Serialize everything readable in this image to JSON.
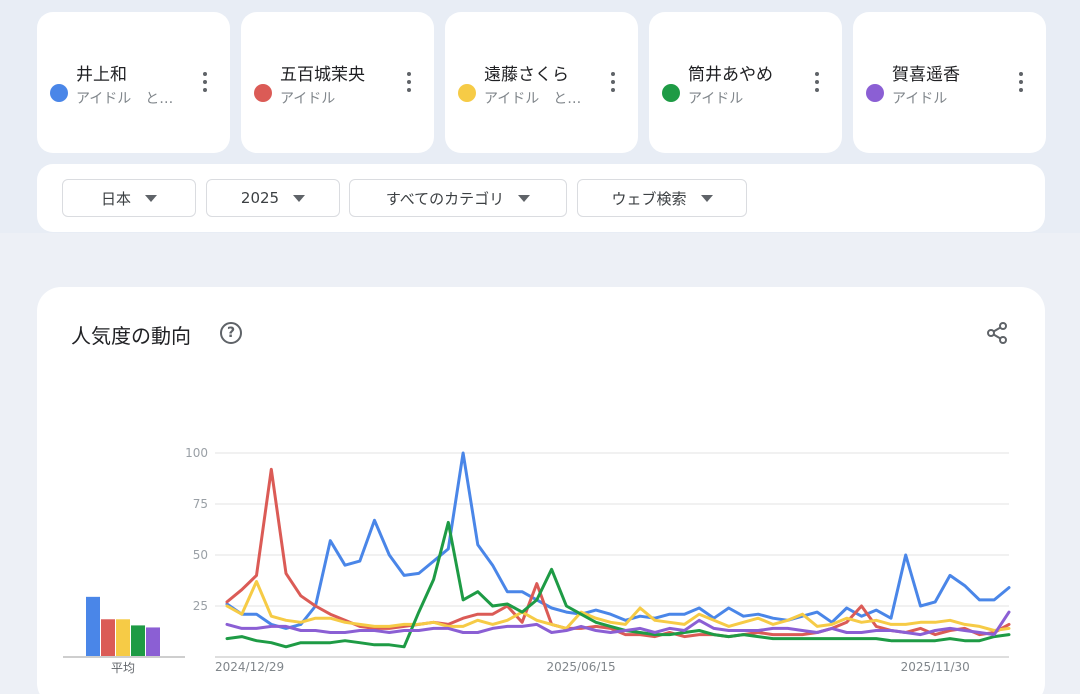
{
  "terms": [
    {
      "name": "井上和",
      "subtitle": "アイドル　と…",
      "color": "#4a86e8"
    },
    {
      "name": "五百城茉央",
      "subtitle": "アイドル",
      "color": "#db5b56"
    },
    {
      "name": "遠藤さくら",
      "subtitle": "アイドル　と…",
      "color": "#f6cb46"
    },
    {
      "name": "筒井あやめ",
      "subtitle": "アイドル",
      "color": "#1e9b45"
    },
    {
      "name": "賀喜遥香",
      "subtitle": "アイドル",
      "color": "#8b5fd4"
    }
  ],
  "filters": {
    "region": "日本",
    "period": "2025",
    "category": "すべてのカテゴリ",
    "search_type": "ウェブ検索"
  },
  "chart": {
    "title": "人気度の動向",
    "average_label": "平均",
    "share_icon": "share-icon",
    "help_icon": "help-icon"
  },
  "chart_data": {
    "type": "line",
    "yticks": [
      100,
      75,
      50,
      25
    ],
    "ylim": [
      0,
      100
    ],
    "xtick_labels": [
      {
        "label": "2024/12/29",
        "index": 0
      },
      {
        "label": "2025/06/15",
        "index": 24
      },
      {
        "label": "2025/11/30",
        "index": 48
      }
    ],
    "averages": [
      29,
      18,
      18,
      15,
      14
    ],
    "series": [
      {
        "name": "井上和",
        "color": "#4a86e8",
        "values": [
          26,
          21,
          21,
          16,
          14,
          16,
          25,
          57,
          45,
          47,
          67,
          50,
          40,
          41,
          47,
          53,
          100,
          55,
          45,
          32,
          32,
          28,
          24,
          22,
          21,
          23,
          21,
          18,
          20,
          19,
          21,
          21,
          24,
          19,
          24,
          20,
          21,
          19,
          18,
          20,
          22,
          17,
          24,
          20,
          23,
          19,
          50,
          25,
          27,
          40,
          35,
          28,
          28,
          34
        ]
      },
      {
        "name": "五百城茉央",
        "color": "#db5b56",
        "values": [
          27,
          33,
          40,
          92,
          41,
          30,
          25,
          21,
          18,
          15,
          14,
          14,
          15,
          16,
          17,
          16,
          19,
          21,
          21,
          25,
          17,
          36,
          16,
          14,
          14,
          15,
          14,
          11,
          11,
          10,
          12,
          10,
          11,
          11,
          10,
          11,
          12,
          11,
          11,
          11,
          12,
          14,
          17,
          25,
          15,
          13,
          12,
          14,
          11,
          13,
          14,
          11,
          12,
          16
        ]
      },
      {
        "name": "遠藤さくら",
        "color": "#f6cb46",
        "values": [
          25,
          21,
          37,
          20,
          18,
          17,
          19,
          19,
          17,
          16,
          15,
          15,
          16,
          16,
          17,
          15,
          15,
          18,
          16,
          18,
          22,
          18,
          16,
          14,
          22,
          19,
          17,
          16,
          24,
          18,
          17,
          16,
          21,
          18,
          15,
          17,
          19,
          16,
          18,
          21,
          15,
          16,
          19,
          17,
          18,
          16,
          16,
          17,
          17,
          18,
          16,
          15,
          13,
          14
        ]
      },
      {
        "name": "筒井あやめ",
        "color": "#1e9b45",
        "values": [
          9,
          10,
          8,
          7,
          5,
          7,
          7,
          7,
          8,
          7,
          6,
          6,
          5,
          22,
          38,
          66,
          28,
          32,
          25,
          26,
          22,
          28,
          43,
          25,
          21,
          17,
          15,
          13,
          12,
          11,
          11,
          12,
          13,
          11,
          10,
          11,
          10,
          9,
          9,
          9,
          9,
          9,
          9,
          9,
          9,
          8,
          8,
          8,
          8,
          9,
          8,
          8,
          10,
          11
        ]
      },
      {
        "name": "賀喜遥香",
        "color": "#8b5fd4",
        "values": [
          16,
          14,
          14,
          15,
          15,
          13,
          13,
          12,
          12,
          13,
          13,
          12,
          13,
          13,
          14,
          14,
          12,
          12,
          14,
          15,
          15,
          16,
          12,
          13,
          15,
          13,
          12,
          13,
          14,
          12,
          14,
          13,
          18,
          14,
          13,
          13,
          13,
          14,
          14,
          13,
          12,
          14,
          12,
          12,
          13,
          13,
          12,
          11,
          13,
          14,
          13,
          12,
          11,
          22
        ]
      }
    ]
  }
}
